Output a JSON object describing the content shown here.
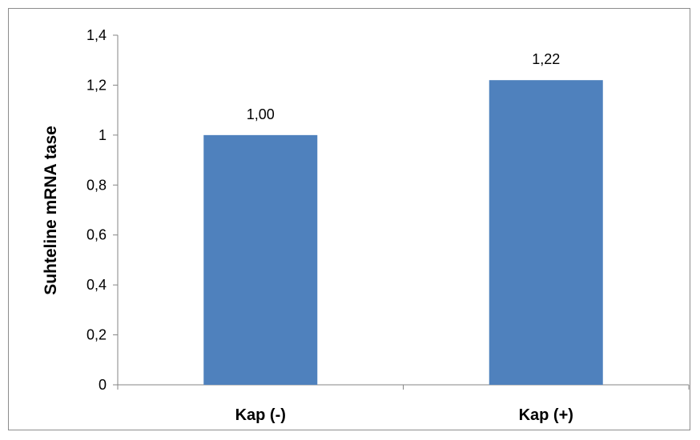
{
  "chart_data": {
    "type": "bar",
    "title": "",
    "xlabel": "",
    "ylabel": "Suhteline mRNA tase",
    "categories": [
      "Kap (-)",
      "Kap (+)"
    ],
    "values": [
      1.0,
      1.22
    ],
    "data_labels": [
      "1,00",
      "1,22"
    ],
    "ylim": [
      0,
      1.4
    ],
    "y_ticks": [
      0,
      0.2,
      0.4,
      0.6,
      0.8,
      1,
      1.2,
      1.4
    ],
    "y_tick_labels": [
      "0",
      "0,2",
      "0,4",
      "0,6",
      "0,8",
      "1",
      "1,2",
      "1,4"
    ],
    "grid": false,
    "legend": "none",
    "bar_color": "#4f81bd",
    "axis_color": "#868686"
  }
}
